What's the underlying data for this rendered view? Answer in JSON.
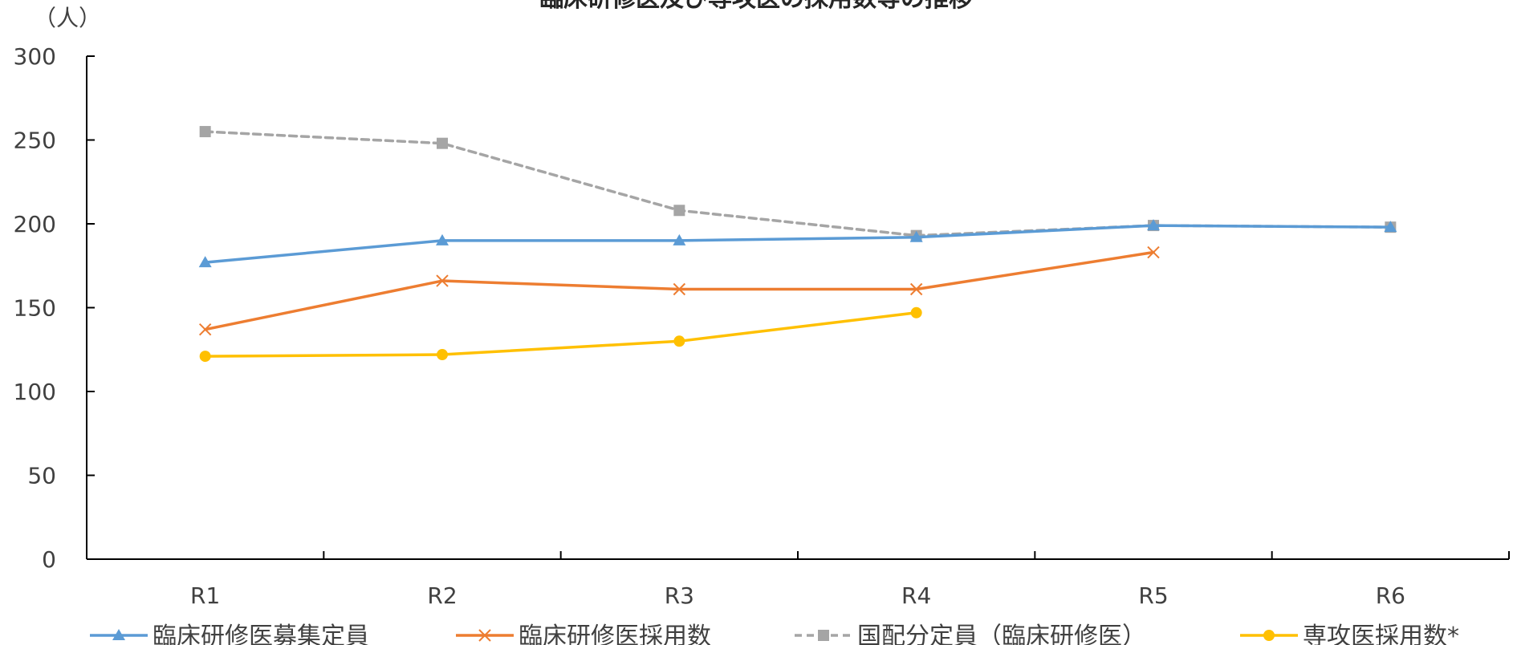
{
  "chart_data": {
    "type": "line",
    "title": "臨床研修医及び専攻医の採用数等の推移",
    "ylabel": "（人）",
    "xlabel": "",
    "ylim": [
      0,
      300
    ],
    "yticks": [
      0,
      50,
      100,
      150,
      200,
      250,
      300
    ],
    "categories": [
      "R1",
      "R2",
      "R3",
      "R4",
      "R5",
      "R6"
    ],
    "grid": false,
    "legend_position": "bottom",
    "series": [
      {
        "name": "臨床研修医募集定員",
        "values": [
          177,
          190,
          190,
          192,
          199,
          198
        ],
        "color": "#5B9BD5",
        "marker": "triangle",
        "dash": "solid"
      },
      {
        "name": "臨床研修医採用数",
        "values": [
          137,
          166,
          161,
          161,
          183,
          null
        ],
        "color": "#ED7D31",
        "marker": "x",
        "dash": "solid"
      },
      {
        "name": "国配分定員（臨床研修医）",
        "values": [
          255,
          248,
          208,
          193,
          199,
          198
        ],
        "color": "#A5A5A5",
        "marker": "square",
        "dash": "dashed"
      },
      {
        "name": "専攻医採用数*",
        "values": [
          121,
          122,
          130,
          147,
          null,
          null
        ],
        "color": "#FFC000",
        "marker": "circle",
        "dash": "solid"
      }
    ]
  }
}
